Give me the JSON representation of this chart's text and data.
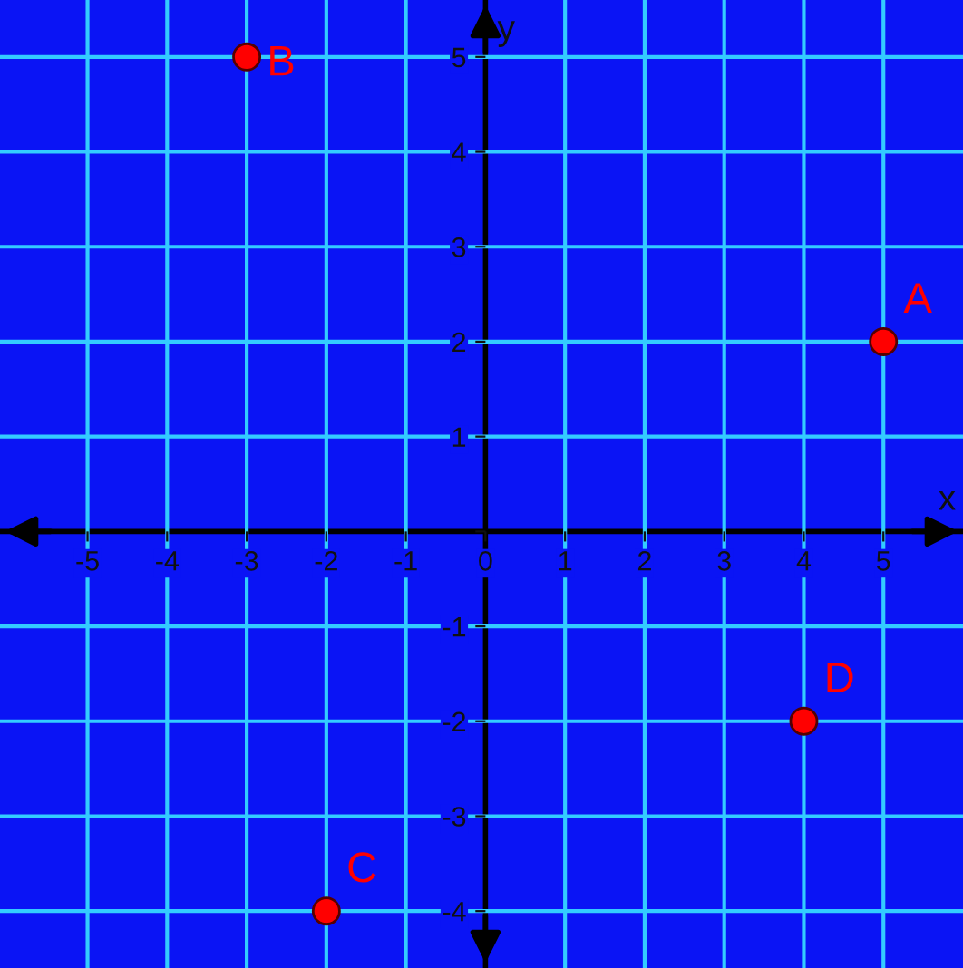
{
  "chart_data": {
    "type": "scatter",
    "xlabel": "x",
    "ylabel": "y",
    "x": [
      5,
      -3,
      -2,
      4
    ],
    "series": [
      {
        "color": "#ff0000",
        "values": [
          2,
          5,
          -4,
          -2
        ]
      }
    ],
    "annotations": [
      {
        "text": "A",
        "x": 5,
        "y": 2
      },
      {
        "text": "B",
        "x": -3,
        "y": 5
      },
      {
        "text": "C",
        "x": -2,
        "y": -4
      },
      {
        "text": "D",
        "x": 4,
        "y": -2
      }
    ],
    "xlim": [
      -6.1,
      6.0
    ],
    "ylim": [
      -4.6,
      5.6
    ],
    "xticks": [
      -5,
      -4,
      -3,
      -2,
      -1,
      0,
      1,
      2,
      3,
      4,
      5
    ],
    "yticks": [
      -4,
      -3,
      -2,
      -1,
      {
        "value": 0,
        "label": null
      },
      1,
      2,
      3,
      4,
      5
    ],
    "grid": true,
    "marker": "circle"
  }
}
